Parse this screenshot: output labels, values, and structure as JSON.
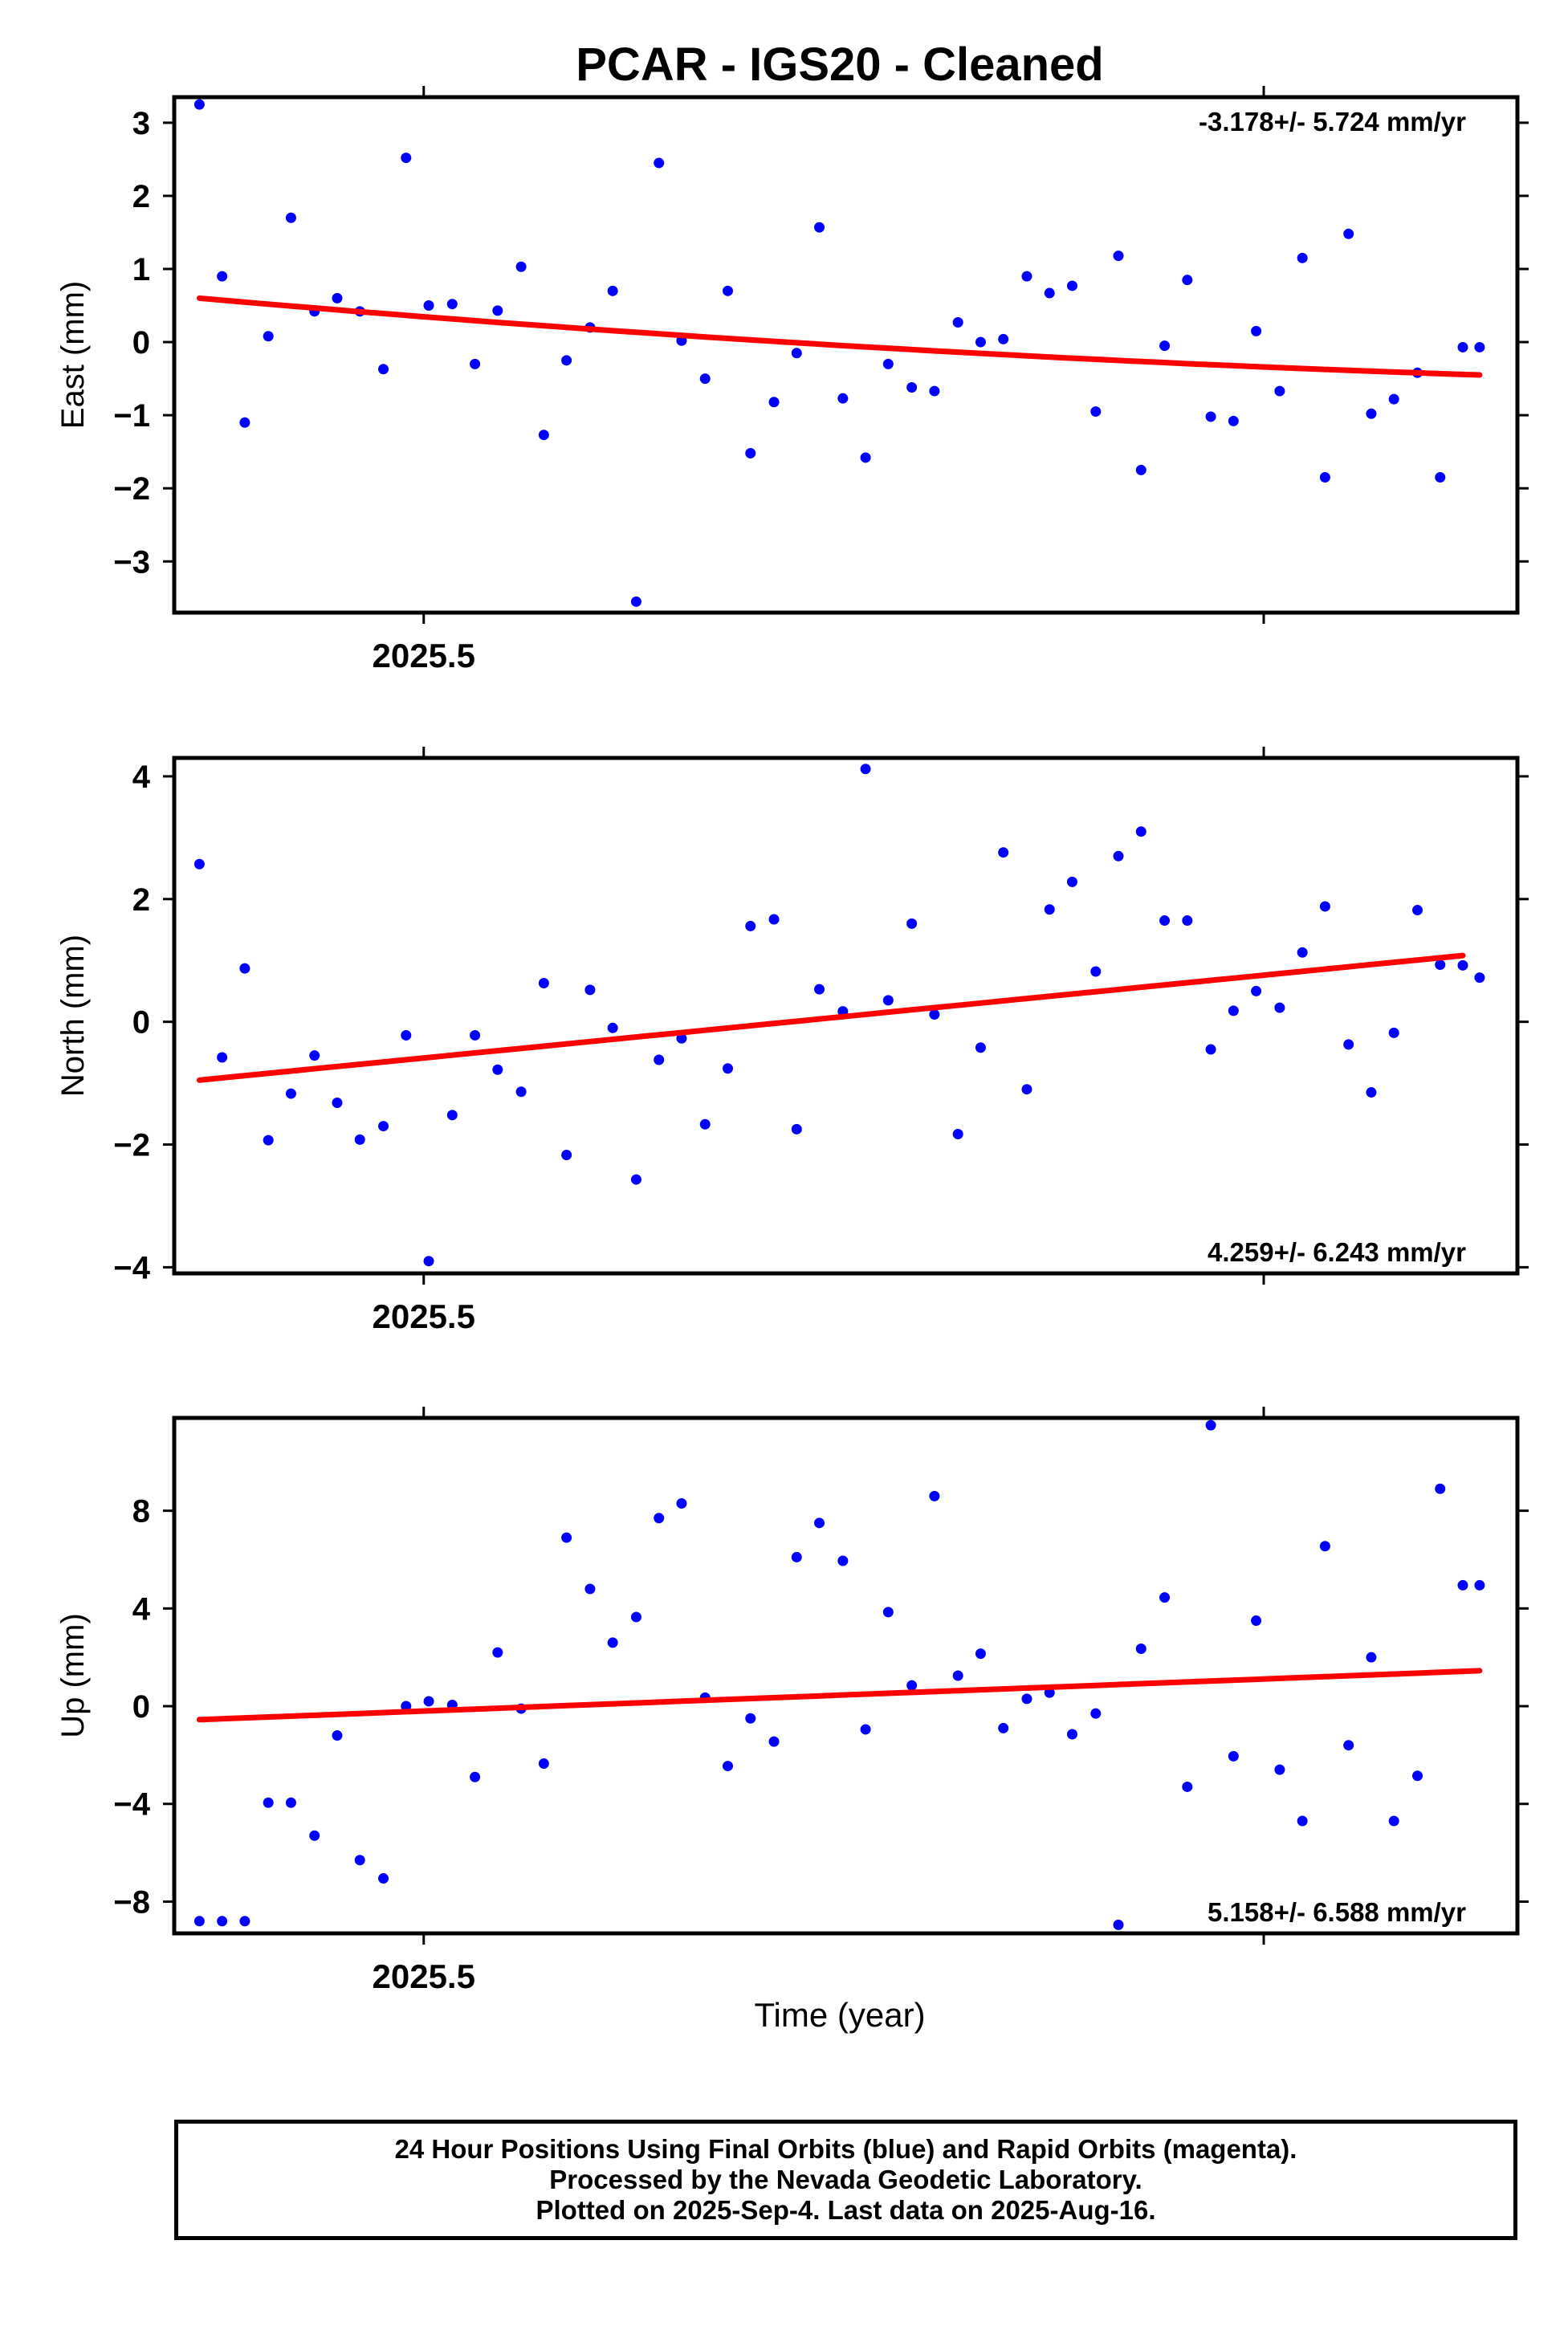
{
  "title": "PCAR  - IGS20 - Cleaned",
  "xlabel": "Time (year)",
  "colors": {
    "final_orbits": "#0000ff",
    "fit_line": "#ff0000",
    "frame": "#000000"
  },
  "footer": {
    "line1": "24 Hour Positions Using Final Orbits (blue) and Rapid Orbits (magenta).",
    "line2": "Processed by the Nevada Geodetic Laboratory.",
    "line3": "Plotted on 2025-Sep-4. Last data on 2025-Aug-16."
  },
  "chart_data": [
    {
      "type": "scatter",
      "ylabel": "East (mm)",
      "ylim": [
        -3.7,
        3.35
      ],
      "yticks": [
        -3,
        -2,
        -1,
        0,
        1,
        2,
        3
      ],
      "xlim": [
        2025.4703,
        2025.6302
      ],
      "xtick_labels": [
        {
          "x": 2025.5,
          "label": "2025.5"
        }
      ],
      "xtick_marks": [
        2025.5,
        2025.6
      ],
      "rate_label": "-3.178+/- 5.724 mm/yr",
      "rate_position": "top-right",
      "trend": {
        "x": [
          2025.4733,
          2025.6257
        ],
        "y": [
          0.6,
          -0.45
        ],
        "bend": -0.12
      },
      "series": [
        {
          "x": [
            2025.4733,
            2025.476,
            2025.4787,
            2025.4815,
            2025.4842,
            2025.487,
            2025.4897,
            2025.4924,
            2025.4952,
            2025.4979,
            2025.5006,
            2025.5034,
            2025.5061,
            2025.5088,
            2025.5116,
            2025.5143,
            2025.517,
            2025.5198,
            2025.5225,
            2025.5253,
            2025.528,
            2025.5307,
            2025.5335,
            2025.5362,
            2025.5389,
            2025.5417,
            2025.5444,
            2025.5471,
            2025.5499,
            2025.5526,
            2025.5553,
            2025.5581,
            2025.5608,
            2025.5636,
            2025.5663,
            2025.569,
            2025.5718,
            2025.5745,
            2025.5772,
            2025.58,
            2025.5827,
            2025.5854,
            2025.5882,
            2025.5909,
            2025.5937,
            2025.5964,
            2025.5991,
            2025.6019,
            2025.6046,
            2025.6073,
            2025.6101,
            2025.6128,
            2025.6155,
            2025.6183,
            2025.621,
            2025.6237,
            2025.6257
          ],
          "y": [
            3.25,
            0.9,
            -1.1,
            0.08,
            1.7,
            0.42,
            0.6,
            0.42,
            -0.37,
            2.52,
            0.5,
            0.52,
            -0.3,
            0.43,
            1.03,
            -1.27,
            -0.25,
            0.2,
            0.7,
            -3.55,
            2.45,
            0.02,
            -0.5,
            0.7,
            -1.52,
            -0.82,
            -0.15,
            1.57,
            -0.77,
            -1.58,
            -0.3,
            -0.62,
            -0.67,
            0.27,
            0.0,
            0.04,
            0.9,
            0.67,
            0.77,
            -0.95,
            1.18,
            -1.75,
            -0.05,
            0.85,
            -1.02,
            -1.08,
            0.15,
            -0.67,
            1.15,
            -1.85,
            1.48,
            -0.98,
            -0.78,
            -0.42,
            -1.85,
            -0.07,
            -0.07
          ]
        }
      ]
    },
    {
      "type": "scatter",
      "ylabel": "North (mm)",
      "ylim": [
        -4.1,
        4.3
      ],
      "yticks": [
        -4,
        -2,
        0,
        2,
        4
      ],
      "xlim": [
        2025.4703,
        2025.6302
      ],
      "xtick_labels": [
        {
          "x": 2025.5,
          "label": "2025.5"
        }
      ],
      "xtick_marks": [
        2025.5,
        2025.6
      ],
      "rate_label": "4.259+/- 6.243 mm/yr",
      "rate_position": "bottom-right",
      "trend": {
        "x": [
          2025.4733,
          2025.6237
        ],
        "y": [
          -0.95,
          1.08
        ],
        "bend": 0.0
      },
      "series": [
        {
          "x": [
            2025.4733,
            2025.476,
            2025.4787,
            2025.4815,
            2025.4842,
            2025.487,
            2025.4897,
            2025.4924,
            2025.4952,
            2025.4979,
            2025.5006,
            2025.5034,
            2025.5061,
            2025.5088,
            2025.5116,
            2025.5143,
            2025.517,
            2025.5198,
            2025.5225,
            2025.5253,
            2025.528,
            2025.5307,
            2025.5335,
            2025.5362,
            2025.5389,
            2025.5417,
            2025.5444,
            2025.5471,
            2025.5499,
            2025.5526,
            2025.5553,
            2025.5581,
            2025.5608,
            2025.5636,
            2025.5663,
            2025.569,
            2025.5718,
            2025.5745,
            2025.5772,
            2025.58,
            2025.5827,
            2025.5854,
            2025.5882,
            2025.5909,
            2025.5937,
            2025.5964,
            2025.5991,
            2025.6019,
            2025.6046,
            2025.6073,
            2025.6101,
            2025.6128,
            2025.6155,
            2025.6183,
            2025.621,
            2025.6237,
            2025.6257
          ],
          "y": [
            2.57,
            -0.58,
            0.87,
            -1.93,
            -1.17,
            -0.55,
            -1.32,
            -1.92,
            -1.7,
            -0.22,
            -3.9,
            -1.52,
            -0.22,
            -0.78,
            -1.14,
            0.63,
            -2.17,
            0.52,
            -0.1,
            -2.57,
            -0.62,
            -0.27,
            -1.67,
            -0.76,
            1.56,
            1.67,
            -1.75,
            0.53,
            0.17,
            4.12,
            0.35,
            1.6,
            0.12,
            -1.83,
            -0.42,
            2.76,
            -1.1,
            1.83,
            2.28,
            0.82,
            2.7,
            3.1,
            1.65,
            1.65,
            -0.45,
            0.18,
            0.5,
            0.23,
            1.13,
            1.88,
            -0.37,
            -1.15,
            -0.18,
            1.82,
            0.93,
            0.92,
            0.72
          ]
        }
      ]
    },
    {
      "type": "scatter",
      "ylabel": "Up (mm)",
      "ylim": [
        -9.3,
        11.8
      ],
      "yticks": [
        -8,
        -4,
        0,
        4,
        8
      ],
      "xlim": [
        2025.4703,
        2025.6302
      ],
      "xtick_labels": [
        {
          "x": 2025.5,
          "label": "2025.5"
        }
      ],
      "xtick_marks": [
        2025.5,
        2025.6
      ],
      "rate_label": "5.158+/- 6.588 mm/yr",
      "rate_position": "bottom-right",
      "trend": {
        "x": [
          2025.4733,
          2025.6257
        ],
        "y": [
          -0.55,
          1.45
        ],
        "bend": 0.0
      },
      "series": [
        {
          "x": [
            2025.4733,
            2025.476,
            2025.4787,
            2025.4815,
            2025.4842,
            2025.487,
            2025.4897,
            2025.4924,
            2025.4952,
            2025.4979,
            2025.5006,
            2025.5034,
            2025.5061,
            2025.5088,
            2025.5116,
            2025.5143,
            2025.517,
            2025.5198,
            2025.5225,
            2025.5253,
            2025.528,
            2025.5307,
            2025.5335,
            2025.5362,
            2025.5389,
            2025.5417,
            2025.5444,
            2025.5471,
            2025.5499,
            2025.5526,
            2025.5553,
            2025.5581,
            2025.5608,
            2025.5636,
            2025.5663,
            2025.569,
            2025.5718,
            2025.5745,
            2025.5772,
            2025.58,
            2025.5827,
            2025.5854,
            2025.5882,
            2025.5909,
            2025.5937,
            2025.5964,
            2025.5991,
            2025.6019,
            2025.6046,
            2025.6073,
            2025.6101,
            2025.6128,
            2025.6155,
            2025.6183,
            2025.621,
            2025.6237,
            2025.6257
          ],
          "y": [
            -8.8,
            -8.8,
            -8.8,
            -3.95,
            -3.95,
            -5.3,
            -1.2,
            -6.3,
            -7.05,
            0.0,
            0.2,
            0.05,
            -2.9,
            2.2,
            -0.1,
            -2.35,
            6.9,
            4.8,
            2.6,
            3.65,
            7.7,
            8.3,
            0.35,
            -2.45,
            -0.5,
            -1.45,
            6.1,
            7.5,
            5.95,
            -0.95,
            3.85,
            0.85,
            8.6,
            1.25,
            2.15,
            -0.9,
            0.3,
            0.55,
            -1.15,
            -0.3,
            -8.95,
            2.35,
            4.45,
            -3.3,
            11.5,
            -2.05,
            3.5,
            -2.6,
            -4.7,
            6.55,
            -1.6,
            2.0,
            -4.7,
            -2.85,
            8.9,
            4.95,
            4.95
          ]
        }
      ]
    }
  ]
}
